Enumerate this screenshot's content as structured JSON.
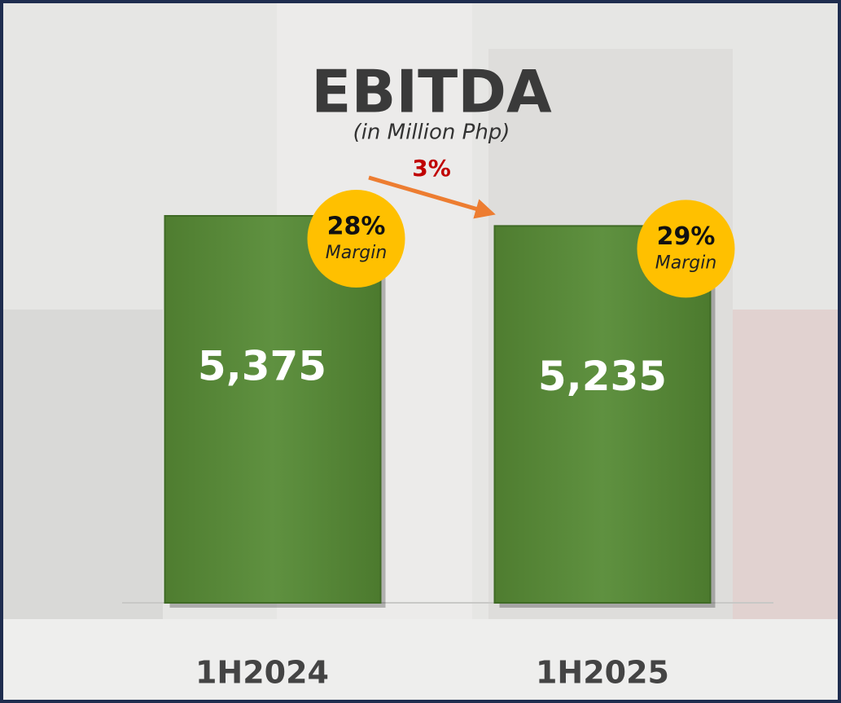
{
  "chart_data": {
    "type": "bar",
    "title": "EBITDA",
    "subtitle": "(in Million Php)",
    "categories": [
      "1H2024",
      "1H2025"
    ],
    "values": [
      5375,
      5235
    ],
    "value_labels": [
      "5,375",
      "5,235"
    ],
    "color": "#5b8c3a",
    "change_label": "3%",
    "margins": {
      "values": [
        28,
        29
      ],
      "value_labels": [
        "28%",
        "29%"
      ],
      "label": "Margin",
      "color": "#ffc000"
    }
  }
}
